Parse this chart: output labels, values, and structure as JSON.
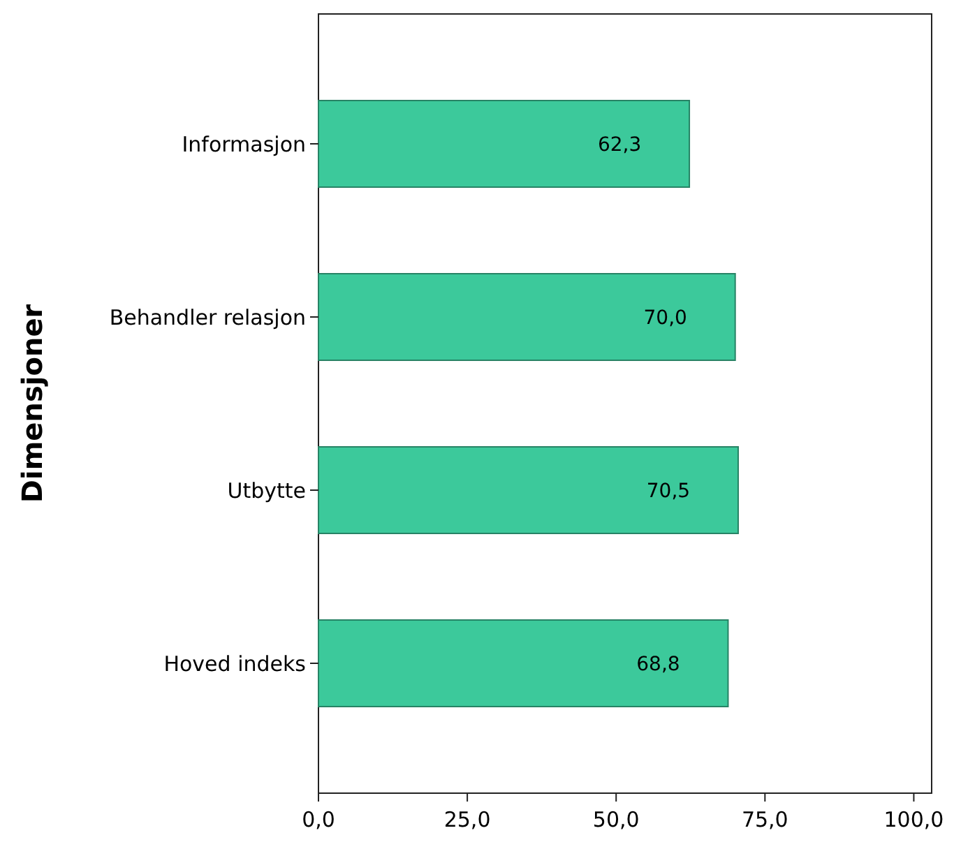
{
  "chart_data": {
    "type": "bar",
    "orientation": "horizontal",
    "ylabel": "Dimensjoner",
    "categories": [
      "Informasjon",
      "Behandler relasjon",
      "Utbytte",
      "Hoved indeks"
    ],
    "values": [
      62.3,
      70.0,
      70.5,
      68.8
    ],
    "value_labels": [
      "62,3",
      "70,0",
      "70,5",
      "68,8"
    ],
    "color": "#3cc99b",
    "xlim": [
      0,
      103
    ],
    "xticks": [
      {
        "value": 0,
        "label": "0,0"
      },
      {
        "value": 25,
        "label": "25,0"
      },
      {
        "value": 50,
        "label": "50,0"
      },
      {
        "value": 75,
        "label": "75,0"
      },
      {
        "value": 100,
        "label": "100,0"
      }
    ],
    "grid": false
  }
}
